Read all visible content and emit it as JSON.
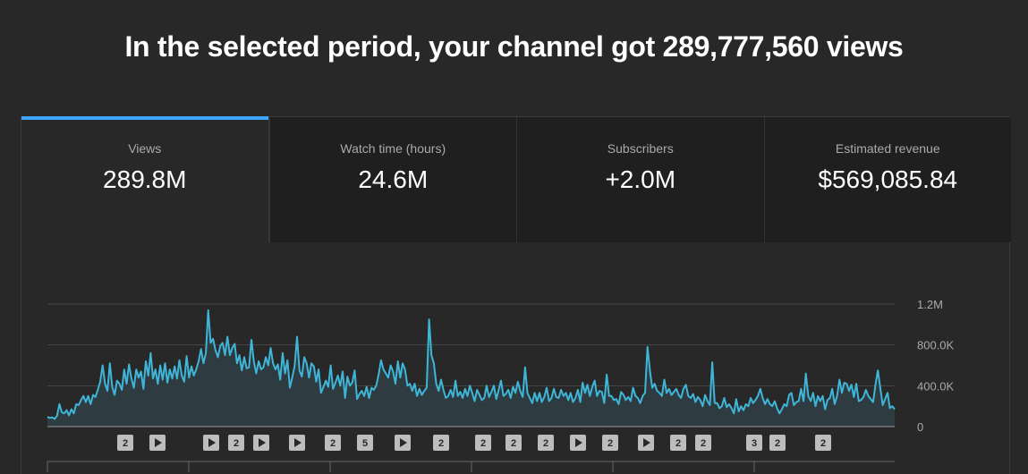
{
  "headline": "In the selected period, your channel got 289,777,560 views",
  "tabs": [
    {
      "label": "Views",
      "value": "289.8M",
      "active": true
    },
    {
      "label": "Watch time (hours)",
      "value": "24.6M",
      "active": false
    },
    {
      "label": "Subscribers",
      "value": "+2.0M",
      "active": false
    },
    {
      "label": "Estimated revenue",
      "value": "$569,085.84",
      "active": false
    }
  ],
  "colors": {
    "accent": "#3ea6ff",
    "line": "#3fb5d8"
  },
  "chart_data": {
    "type": "area",
    "title": "",
    "ylabel": "",
    "xlabel": "",
    "ylim": [
      0,
      1200000
    ],
    "y_ticks": [
      {
        "value": 1200000,
        "label": "1.2M"
      },
      {
        "value": 800000,
        "label": "800.0K"
      },
      {
        "value": 400000,
        "label": "400.0K"
      },
      {
        "value": 0,
        "label": "0"
      }
    ],
    "grid": true,
    "series": [
      {
        "values": [
          95000,
          85000,
          90000,
          75000,
          105000,
          220000,
          140000,
          130000,
          160000,
          110000,
          170000,
          130000,
          220000,
          210000,
          260000,
          300000,
          240000,
          300000,
          220000,
          310000,
          290000,
          360000,
          440000,
          600000,
          420000,
          350000,
          620000,
          390000,
          310000,
          450000,
          420000,
          360000,
          560000,
          420000,
          610000,
          470000,
          380000,
          560000,
          480000,
          540000,
          370000,
          640000,
          500000,
          720000,
          470000,
          560000,
          420000,
          600000,
          460000,
          620000,
          430000,
          560000,
          470000,
          590000,
          470000,
          650000,
          500000,
          440000,
          690000,
          480000,
          590000,
          500000,
          560000,
          640000,
          760000,
          620000,
          720000,
          1140000,
          820000,
          860000,
          750000,
          680000,
          790000,
          820000,
          700000,
          880000,
          700000,
          770000,
          810000,
          620000,
          700000,
          550000,
          680000,
          570000,
          580000,
          850000,
          640000,
          520000,
          640000,
          560000,
          580000,
          680000,
          600000,
          770000,
          620000,
          560000,
          610000,
          460000,
          720000,
          520000,
          650000,
          380000,
          480000,
          590000,
          880000,
          550000,
          490000,
          680000,
          620000,
          480000,
          620000,
          590000,
          440000,
          560000,
          330000,
          390000,
          450000,
          390000,
          600000,
          370000,
          430000,
          500000,
          400000,
          540000,
          280000,
          490000,
          400000,
          430000,
          550000,
          270000,
          320000,
          350000,
          300000,
          390000,
          280000,
          380000,
          360000,
          400000,
          510000,
          650000,
          560000,
          520000,
          480000,
          600000,
          540000,
          420000,
          640000,
          480000,
          620000,
          560000,
          400000,
          420000,
          350000,
          420000,
          300000,
          370000,
          310000,
          350000,
          380000,
          1050000,
          700000,
          620000,
          420000,
          350000,
          460000,
          360000,
          280000,
          300000,
          360000,
          290000,
          450000,
          300000,
          340000,
          280000,
          370000,
          300000,
          400000,
          330000,
          250000,
          360000,
          310000,
          260000,
          280000,
          400000,
          290000,
          340000,
          400000,
          270000,
          360000,
          450000,
          300000,
          320000,
          360000,
          280000,
          390000,
          330000,
          440000,
          350000,
          290000,
          580000,
          330000,
          280000,
          230000,
          330000,
          250000,
          330000,
          240000,
          290000,
          380000,
          250000,
          280000,
          370000,
          290000,
          280000,
          360000,
          300000,
          330000,
          260000,
          330000,
          240000,
          280000,
          360000,
          240000,
          430000,
          330000,
          410000,
          300000,
          390000,
          450000,
          300000,
          350000,
          340000,
          230000,
          510000,
          300000,
          300000,
          260000,
          270000,
          220000,
          340000,
          310000,
          260000,
          290000,
          250000,
          380000,
          300000,
          280000,
          230000,
          300000,
          330000,
          780000,
          550000,
          380000,
          420000,
          350000,
          330000,
          300000,
          460000,
          330000,
          370000,
          310000,
          340000,
          370000,
          310000,
          280000,
          370000,
          410000,
          300000,
          280000,
          320000,
          240000,
          290000,
          260000,
          200000,
          310000,
          250000,
          210000,
          630000,
          230000,
          230000,
          180000,
          200000,
          280000,
          190000,
          220000,
          180000,
          130000,
          270000,
          150000,
          200000,
          160000,
          220000,
          200000,
          280000,
          230000,
          260000,
          300000,
          370000,
          280000,
          220000,
          270000,
          220000,
          200000,
          250000,
          180000,
          130000,
          170000,
          220000,
          200000,
          310000,
          330000,
          210000,
          240000,
          250000,
          370000,
          250000,
          520000,
          300000,
          250000,
          330000,
          200000,
          300000,
          250000,
          300000,
          170000,
          260000,
          280000,
          370000,
          220000,
          300000,
          460000,
          330000,
          430000,
          420000,
          350000,
          410000,
          290000,
          420000,
          250000,
          260000,
          290000,
          360000,
          300000,
          270000,
          240000,
          410000,
          550000,
          380000,
          210000,
          270000,
          330000,
          180000,
          200000,
          170000
        ]
      }
    ],
    "markers": [
      "2",
      "play",
      "play",
      "2",
      "play",
      "play",
      "2",
      "5",
      "play",
      "2",
      "2",
      "2",
      "2",
      "play",
      "2",
      "play",
      "2",
      "2",
      "3",
      "2",
      "2"
    ]
  }
}
